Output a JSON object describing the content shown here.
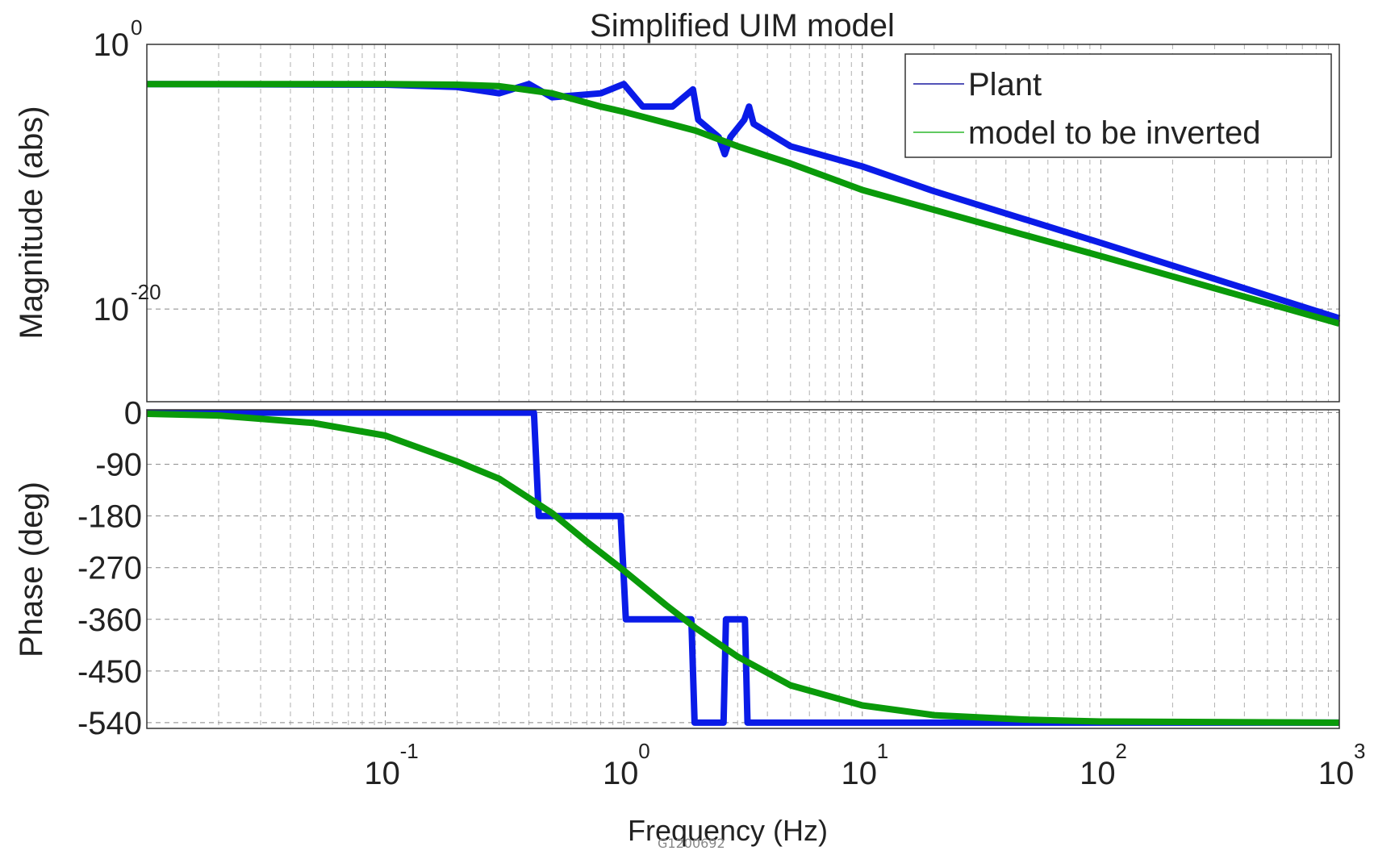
{
  "chart_data": {
    "title": "Simplified UIM model",
    "xlabel": "Frequency (Hz)",
    "x_scale": "log",
    "xlim": [
      0.01,
      1000
    ],
    "xticks": [
      {
        "value": 0.1,
        "base": "10",
        "exp": "-1"
      },
      {
        "value": 1,
        "base": "10",
        "exp": "0"
      },
      {
        "value": 10,
        "base": "10",
        "exp": "1"
      },
      {
        "value": 100,
        "base": "10",
        "exp": "2"
      },
      {
        "value": 1000,
        "base": "10",
        "exp": "3"
      }
    ],
    "grid": true,
    "legend": {
      "placement": "top-right",
      "entries": [
        "Plant",
        "model to be inverted"
      ]
    },
    "colors": {
      "plant": "#0a1be8",
      "model": "#0a9a0a",
      "plant_legend": "#1a1aa0",
      "model_legend": "#2db82d",
      "grid": "#b0b0b0"
    },
    "panels": [
      {
        "type": "line",
        "ylabel": "Magnitude (abs)",
        "y_scale": "log",
        "ylim": [
          1e-27,
          1
        ],
        "yticks": [
          {
            "value": 1,
            "base": "10",
            "exp": "0"
          },
          {
            "value": 1e-20,
            "base": "10",
            "exp": "-20"
          }
        ],
        "series": [
          {
            "name": "Plant",
            "points": [
              [
                0.01,
                0.001
              ],
              [
                0.1,
                0.0009
              ],
              [
                0.2,
                0.0006
              ],
              [
                0.3,
                0.0002
              ],
              [
                0.4,
                0.001
              ],
              [
                0.5,
                0.0001
              ],
              [
                0.8,
                0.0002
              ],
              [
                1.0,
                0.001
              ],
              [
                1.2,
                2e-05
              ],
              [
                1.6,
                2e-05
              ],
              [
                1.95,
                0.0004
              ],
              [
                2.05,
                2e-06
              ],
              [
                2.5,
                1e-07
              ],
              [
                2.65,
                5e-09
              ],
              [
                2.8,
                1e-07
              ],
              [
                3.2,
                2e-06
              ],
              [
                3.35,
                2e-05
              ],
              [
                3.5,
                1e-06
              ],
              [
                5,
                2e-08
              ],
              [
                10,
                6e-10
              ],
              [
                20,
                8e-12
              ],
              [
                100,
                1e-15
              ],
              [
                1000,
                2e-21
              ]
            ]
          },
          {
            "name": "model to be inverted",
            "points": [
              [
                0.01,
                0.001
              ],
              [
                0.1,
                0.001
              ],
              [
                0.2,
                0.0009
              ],
              [
                0.3,
                0.0007
              ],
              [
                0.5,
                0.0002
              ],
              [
                0.8,
                2e-05
              ],
              [
                1,
                8e-06
              ],
              [
                2,
                3e-07
              ],
              [
                3,
                2e-08
              ],
              [
                5,
                1e-09
              ],
              [
                10,
                1e-11
              ],
              [
                100,
                1e-16
              ],
              [
                1000,
                8e-22
              ]
            ]
          }
        ]
      },
      {
        "type": "line",
        "ylabel": "Phase (deg)",
        "y_scale": "linear",
        "ylim": [
          -550,
          5
        ],
        "yticks": [
          {
            "value": 0,
            "label": "0"
          },
          {
            "value": -90,
            "label": "-90"
          },
          {
            "value": -180,
            "label": "-180"
          },
          {
            "value": -270,
            "label": "-270"
          },
          {
            "value": -360,
            "label": "-360"
          },
          {
            "value": -450,
            "label": "-450"
          },
          {
            "value": -540,
            "label": "-540"
          }
        ],
        "series": [
          {
            "name": "Plant",
            "points": [
              [
                0.01,
                0
              ],
              [
                0.42,
                0
              ],
              [
                0.44,
                -180
              ],
              [
                0.97,
                -180
              ],
              [
                1.02,
                -360
              ],
              [
                1.92,
                -360
              ],
              [
                1.98,
                -540
              ],
              [
                2.62,
                -540
              ],
              [
                2.68,
                -360
              ],
              [
                3.22,
                -360
              ],
              [
                3.3,
                -540
              ],
              [
                1000,
                -540
              ]
            ]
          },
          {
            "name": "model to be inverted",
            "points": [
              [
                0.01,
                -2
              ],
              [
                0.02,
                -5
              ],
              [
                0.05,
                -18
              ],
              [
                0.1,
                -40
              ],
              [
                0.2,
                -85
              ],
              [
                0.3,
                -115
              ],
              [
                0.5,
                -175
              ],
              [
                0.7,
                -225
              ],
              [
                1,
                -275
              ],
              [
                1.5,
                -335
              ],
              [
                2,
                -375
              ],
              [
                3,
                -425
              ],
              [
                5,
                -475
              ],
              [
                10,
                -510
              ],
              [
                20,
                -527
              ],
              [
                50,
                -535
              ],
              [
                100,
                -538
              ],
              [
                1000,
                -540
              ]
            ]
          }
        ]
      }
    ]
  },
  "footer": {
    "doc_id": "G1200692"
  }
}
